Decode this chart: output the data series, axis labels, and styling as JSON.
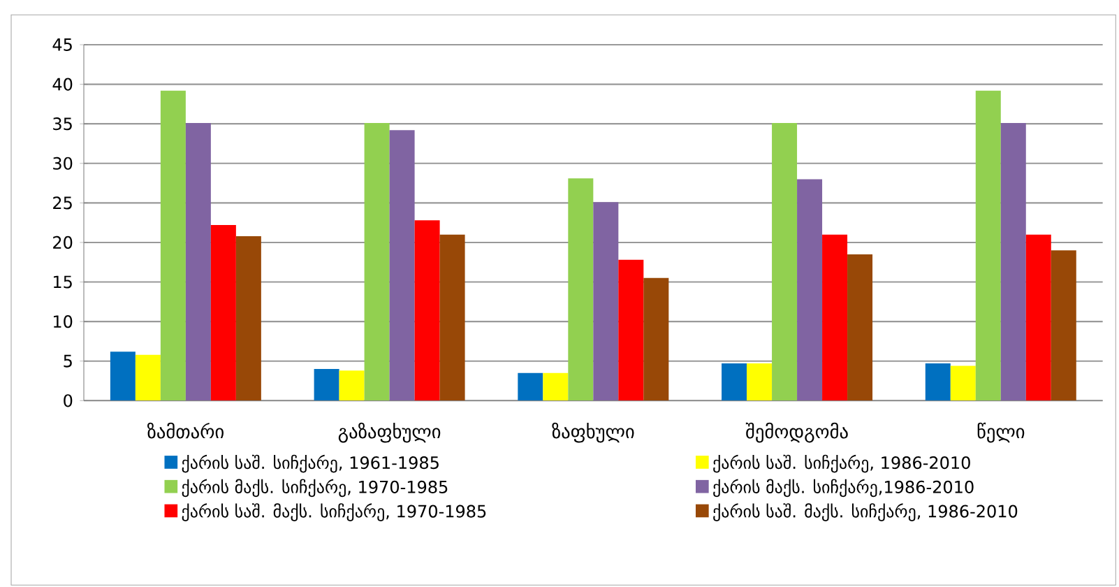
{
  "chart_data": {
    "type": "bar",
    "categories": [
      "ზამთარი",
      "გაზაფხული",
      "ზაფხული",
      "შემოდგომა",
      "წელი"
    ],
    "series": [
      {
        "name": "ქარის საშ. სიჩქარე, 1961-1985",
        "color": "#0070c0",
        "values": [
          6.2,
          4.0,
          3.5,
          4.7,
          4.7
        ]
      },
      {
        "name": "ქარის საშ. სიჩქარე, 1986-2010",
        "color": "#ffff00",
        "values": [
          5.8,
          3.8,
          3.5,
          4.7,
          4.4
        ]
      },
      {
        "name": "ქარის მაქს. სიჩქარე, 1970-1985",
        "color": "#92d050",
        "values": [
          39.2,
          35.1,
          28.1,
          35.1,
          39.2
        ]
      },
      {
        "name": "ქარის მაქს. სიჩქარე,1986-2010",
        "color": "#8064a2",
        "values": [
          35.1,
          34.2,
          25.1,
          28.0,
          35.1
        ]
      },
      {
        "name": "ქარის საშ. მაქს. სიჩქარე, 1970-1985",
        "color": "#ff0000",
        "values": [
          22.2,
          22.8,
          17.8,
          21.0,
          21.0
        ]
      },
      {
        "name": "ქარის საშ. მაქს. სიჩქარე, 1986-2010",
        "color": "#984807",
        "values": [
          20.8,
          21.0,
          15.5,
          18.5,
          19.0
        ]
      }
    ],
    "ylim": [
      0,
      45
    ],
    "yticks": [
      0,
      5,
      10,
      15,
      20,
      25,
      30,
      35,
      40,
      45
    ],
    "grid": "y",
    "legend": "bottom"
  }
}
